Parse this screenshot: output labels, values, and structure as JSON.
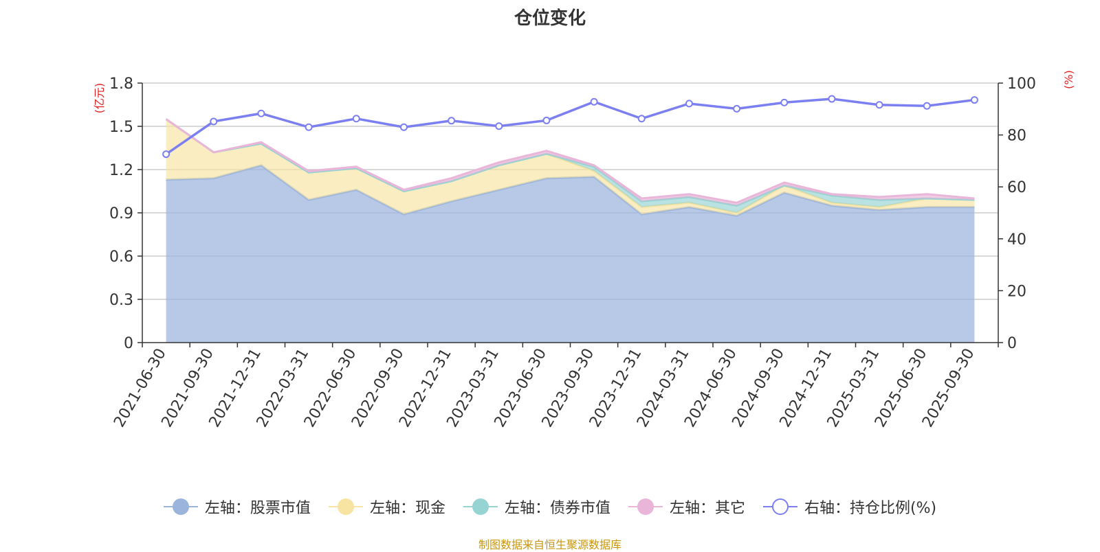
{
  "chart_data": {
    "type": "area",
    "title": "仓位变化",
    "categories": [
      "2021-06-30",
      "2021-09-30",
      "2021-12-31",
      "2022-03-31",
      "2022-06-30",
      "2022-09-30",
      "2022-12-31",
      "2023-03-31",
      "2023-06-30",
      "2023-09-30",
      "2023-12-31",
      "2024-03-31",
      "2024-06-30",
      "2024-09-30",
      "2024-12-31",
      "2025-03-31",
      "2025-06-30",
      "2025-09-30"
    ],
    "left_axis": {
      "label": "(亿元)",
      "ylim": [
        0,
        1.8
      ],
      "ticks": [
        "0",
        "0.3",
        "0.6",
        "0.9",
        "1.2",
        "1.5",
        "1.8"
      ],
      "tick_values": [
        0,
        0.3,
        0.6,
        0.9,
        1.2,
        1.5,
        1.8
      ]
    },
    "right_axis": {
      "label": "(%)",
      "ylim": [
        0,
        100
      ],
      "ticks": [
        "0",
        "20",
        "40",
        "60",
        "80",
        "100"
      ],
      "tick_values": [
        0,
        20,
        40,
        60,
        80,
        100
      ]
    },
    "series": [
      {
        "name": "左轴：股票市值",
        "axis": "left",
        "kind": "stacked-area",
        "color": "#9bb4dc",
        "values": [
          1.13,
          1.14,
          1.23,
          0.99,
          1.06,
          0.89,
          0.98,
          1.06,
          1.14,
          1.15,
          0.89,
          0.94,
          0.88,
          1.04,
          0.95,
          0.92,
          0.94,
          0.94
        ]
      },
      {
        "name": "左轴：现金",
        "axis": "left",
        "kind": "stacked-area",
        "color": "#f7e4a2",
        "values": [
          0.42,
          0.18,
          0.15,
          0.19,
          0.15,
          0.16,
          0.14,
          0.17,
          0.17,
          0.04,
          0.05,
          0.03,
          0.02,
          0.05,
          0.02,
          0.02,
          0.06,
          0.05
        ]
      },
      {
        "name": "左轴：债券市值",
        "axis": "left",
        "kind": "stacked-area",
        "color": "#96d3d3",
        "values": [
          0,
          0,
          0,
          0,
          0,
          0,
          0,
          0,
          0,
          0.03,
          0.04,
          0.04,
          0.05,
          0,
          0.05,
          0.05,
          0,
          0
        ]
      },
      {
        "name": "左轴：其它",
        "axis": "left",
        "kind": "stacked-area",
        "color": "#e9b5d8",
        "values": [
          0,
          0,
          0.01,
          0.01,
          0.01,
          0.01,
          0.02,
          0.02,
          0.02,
          0.01,
          0.02,
          0.02,
          0.02,
          0.02,
          0.01,
          0.02,
          0.03,
          0.01
        ]
      },
      {
        "name": "右轴：持仓比例(%)",
        "axis": "right",
        "kind": "line",
        "color": "#7b7ff0",
        "values": [
          72.6,
          85.2,
          88.3,
          83.0,
          86.3,
          83.0,
          85.5,
          83.4,
          85.6,
          92.8,
          86.3,
          92.1,
          90.1,
          92.5,
          93.9,
          91.6,
          91.2,
          93.5
        ]
      }
    ],
    "source_note": "制图数据来自恒生聚源数据库"
  }
}
